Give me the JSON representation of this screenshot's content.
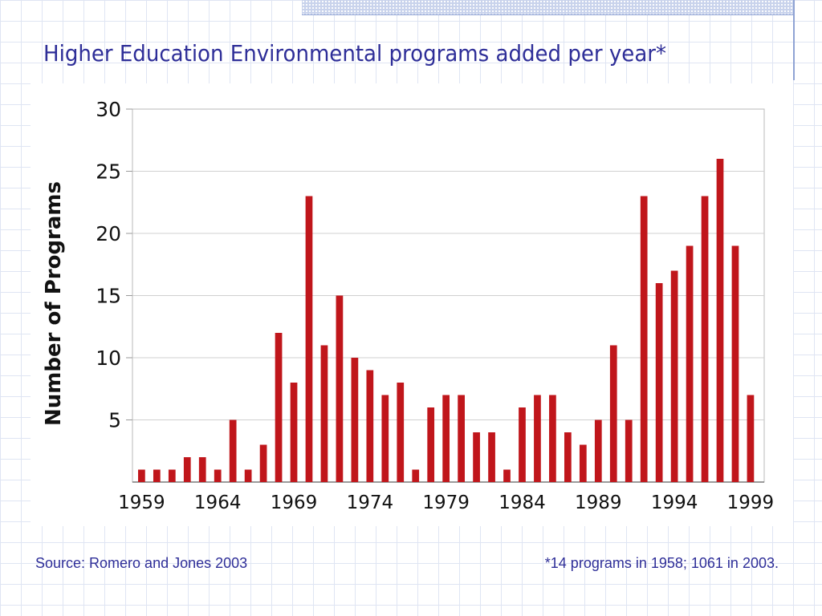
{
  "slide": {
    "title": "Higher Education Environmental programs added per year*",
    "source": "Source:  Romero and Jones 2003",
    "footnote": "*14 programs in 1958; 1061 in 2003.",
    "title_color": "#2e2e98"
  },
  "chart_data": {
    "type": "bar",
    "title": "",
    "xlabel": "",
    "ylabel": "Number of Programs",
    "x": [
      1959,
      1960,
      1961,
      1962,
      1963,
      1964,
      1965,
      1966,
      1967,
      1968,
      1969,
      1970,
      1971,
      1972,
      1973,
      1974,
      1975,
      1976,
      1977,
      1978,
      1979,
      1980,
      1981,
      1982,
      1983,
      1984,
      1985,
      1986,
      1987,
      1988,
      1989,
      1990,
      1991,
      1992,
      1993,
      1994,
      1995,
      1996,
      1997,
      1998,
      1999
    ],
    "values": [
      1,
      1,
      1,
      2,
      2,
      1,
      5,
      1,
      3,
      12,
      8,
      23,
      11,
      15,
      10,
      9,
      7,
      8,
      1,
      6,
      7,
      7,
      4,
      4,
      1,
      6,
      7,
      7,
      4,
      3,
      5,
      11,
      5,
      23,
      16,
      17,
      19,
      23,
      26,
      19,
      7
    ],
    "xticks": [
      "1959",
      "1964",
      "1969",
      "1974",
      "1979",
      "1984",
      "1989",
      "1994",
      "1999"
    ],
    "yticks": [
      5,
      10,
      15,
      20,
      25,
      30
    ],
    "ylim": [
      0,
      30
    ],
    "grid": true,
    "bar_color": "#c0161b"
  }
}
